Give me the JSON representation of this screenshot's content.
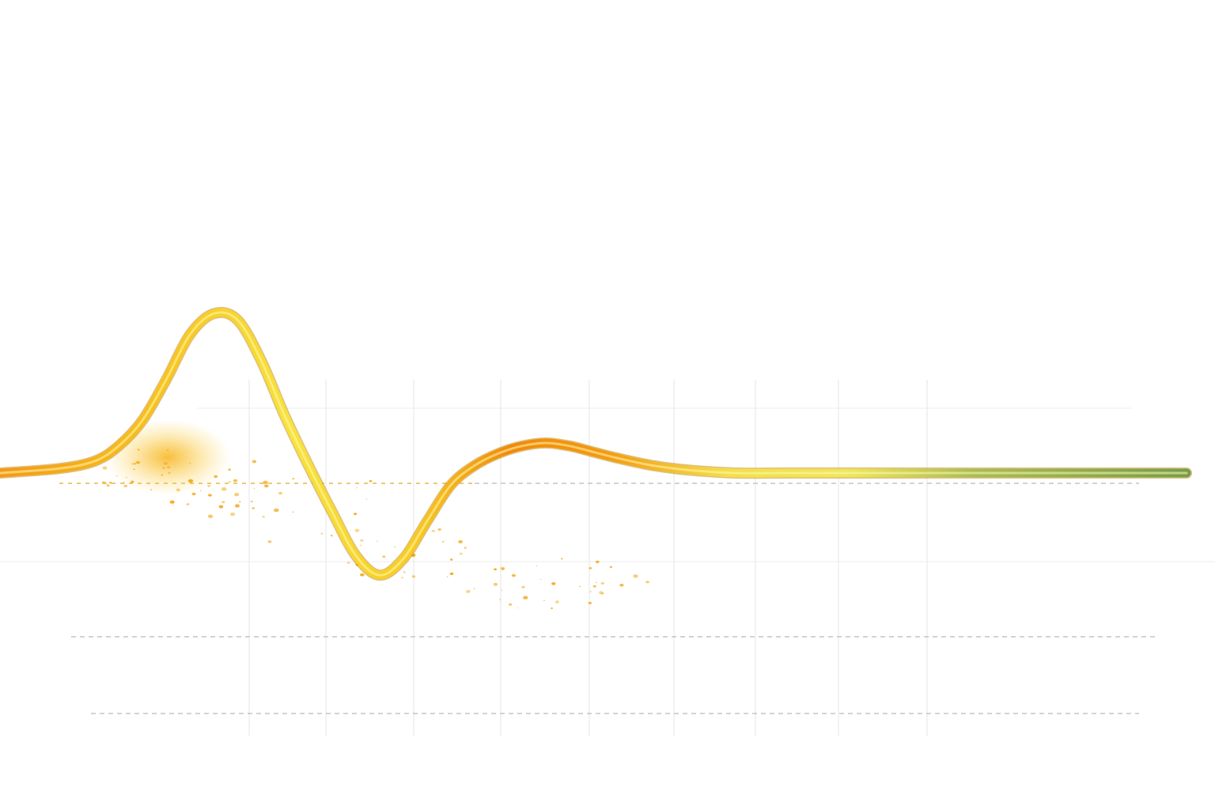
{
  "chart_data": {
    "type": "line",
    "title": "",
    "xlabel": "",
    "ylabel": "",
    "grid": true,
    "legend": "none",
    "xlim": [
      0,
      100
    ],
    "ylim": [
      -1,
      1.5
    ],
    "series": [
      {
        "x": [
          0,
          5,
          8,
          10,
          12,
          14,
          16,
          18,
          20,
          22,
          24,
          26,
          28,
          30,
          32,
          34,
          36,
          38,
          40,
          42,
          44,
          46,
          48,
          50,
          52,
          55,
          58,
          62,
          66,
          70,
          74,
          78,
          82,
          86,
          90,
          94,
          97,
          100
        ],
        "y": [
          0,
          0.03,
          0.08,
          0.18,
          0.35,
          0.62,
          0.92,
          1.06,
          1.02,
          0.75,
          0.38,
          0.05,
          -0.26,
          -0.55,
          -0.68,
          -0.57,
          -0.32,
          -0.08,
          0.05,
          0.13,
          0.18,
          0.2,
          0.18,
          0.14,
          0.1,
          0.05,
          0.02,
          0.0,
          0.0,
          0.0,
          0.0,
          0.0,
          0.0,
          0.0,
          0.0,
          0.0,
          0.0,
          0.0
        ]
      }
    ],
    "colors": {
      "start": "#f39a16",
      "peak": "#f7df3a",
      "trough": "#f08a0a",
      "mid": "#eee65a",
      "end": "#6e9a4a",
      "particles": "#f2a91a"
    }
  }
}
